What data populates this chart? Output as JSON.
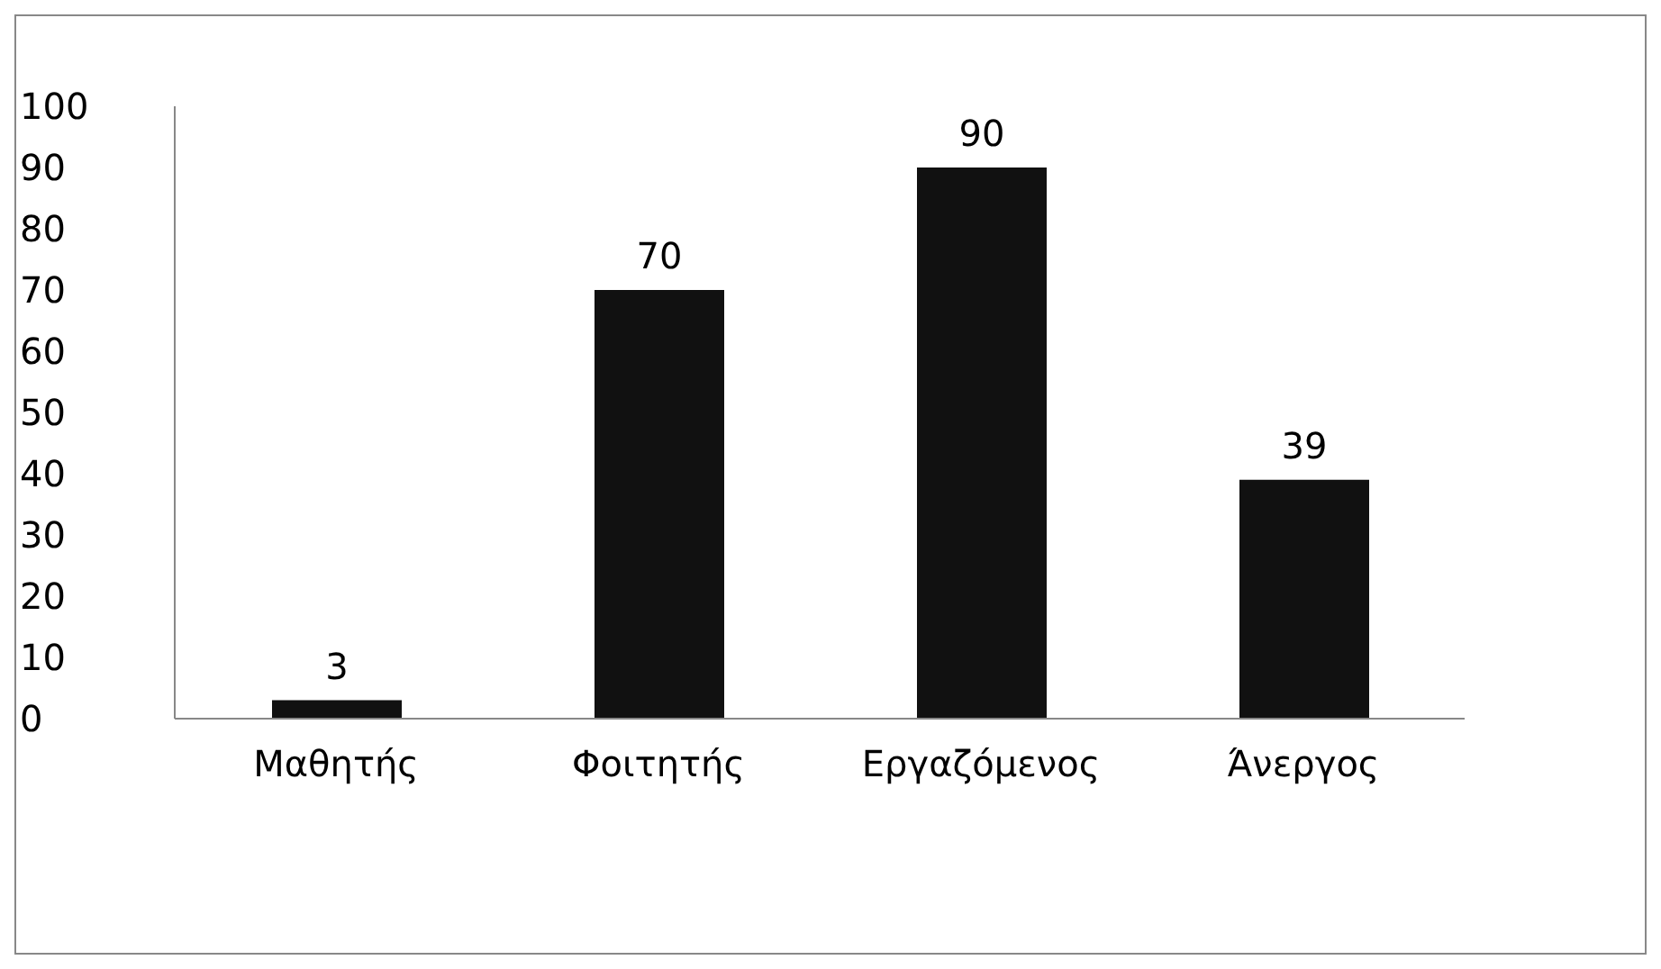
{
  "chart_data": {
    "type": "bar",
    "categories": [
      "Μαθητής",
      "Φοιτητής",
      "Εργαζόμενος",
      "Άνεργος"
    ],
    "values": [
      3,
      70,
      90,
      39
    ],
    "color": "#111111",
    "ylim": [
      0,
      100
    ],
    "yticks": [
      0,
      10,
      20,
      30,
      40,
      50,
      60,
      70,
      80,
      90,
      100
    ],
    "grid": false,
    "data_labels": true
  }
}
